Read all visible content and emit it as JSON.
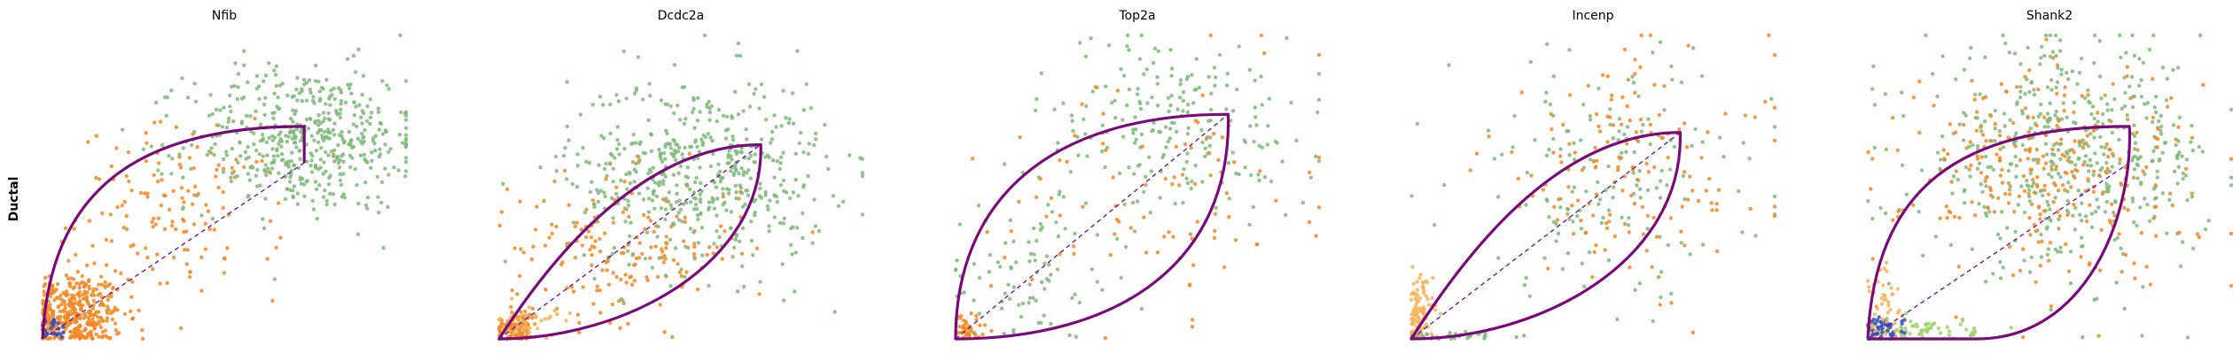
{
  "figure": {
    "row_label": "Ductal",
    "colors": {
      "green": "#7fb97a",
      "orange": "#f08a24",
      "light_orange": "#f4b45a",
      "light_green": "#9fd46a",
      "blue": "#3b4cc0",
      "purple": "#7a0a7a",
      "dashed": "#6a1b9a"
    }
  },
  "chart_data": [
    {
      "type": "scatter",
      "title": "Nfib",
      "shape": "top_curve",
      "clusters": [
        {
          "color": "orange",
          "n": 420,
          "cx": 0.08,
          "cy": 0.08,
          "sx": 0.07,
          "sy": 0.07
        },
        {
          "color": "orange",
          "n": 140,
          "cx": 0.38,
          "cy": 0.42,
          "sx": 0.14,
          "sy": 0.14
        },
        {
          "color": "green",
          "n": 520,
          "cx": 0.72,
          "cy": 0.66,
          "sx": 0.16,
          "sy": 0.12
        },
        {
          "color": "blue",
          "n": 25,
          "cx": 0.03,
          "cy": 0.03,
          "sx": 0.02,
          "sy": 0.02
        }
      ],
      "tip": [
        0.72,
        0.7
      ]
    },
    {
      "type": "scatter",
      "title": "Dcdc2a",
      "shape": "leaf_narrow",
      "clusters": [
        {
          "color": "orange",
          "n": 110,
          "cx": 0.05,
          "cy": 0.04,
          "sx": 0.03,
          "sy": 0.03
        },
        {
          "color": "orange",
          "n": 180,
          "cx": 0.35,
          "cy": 0.3,
          "sx": 0.16,
          "sy": 0.12
        },
        {
          "color": "green",
          "n": 520,
          "cx": 0.55,
          "cy": 0.55,
          "sx": 0.18,
          "sy": 0.16
        },
        {
          "color": "light_orange",
          "n": 40,
          "cx": 0.08,
          "cy": 0.05,
          "sx": 0.04,
          "sy": 0.03
        }
      ],
      "tip": [
        0.72,
        0.64
      ]
    },
    {
      "type": "scatter",
      "title": "Top2a",
      "shape": "leaf_wide",
      "clusters": [
        {
          "color": "green",
          "n": 220,
          "cx": 0.6,
          "cy": 0.7,
          "sx": 0.2,
          "sy": 0.15
        },
        {
          "color": "green",
          "n": 80,
          "cx": 0.2,
          "cy": 0.2,
          "sx": 0.12,
          "sy": 0.12
        },
        {
          "color": "orange",
          "n": 90,
          "cx": 0.55,
          "cy": 0.5,
          "sx": 0.22,
          "sy": 0.2
        },
        {
          "color": "orange",
          "n": 40,
          "cx": 0.03,
          "cy": 0.03,
          "sx": 0.03,
          "sy": 0.03
        }
      ],
      "tip": [
        0.75,
        0.74
      ]
    },
    {
      "type": "scatter",
      "title": "Incenp",
      "shape": "leaf_narrow",
      "clusters": [
        {
          "color": "light_orange",
          "n": 110,
          "cx": 0.02,
          "cy": 0.07,
          "sx": 0.02,
          "sy": 0.07
        },
        {
          "color": "green",
          "n": 160,
          "cx": 0.55,
          "cy": 0.55,
          "sx": 0.22,
          "sy": 0.2
        },
        {
          "color": "orange",
          "n": 150,
          "cx": 0.6,
          "cy": 0.55,
          "sx": 0.2,
          "sy": 0.2
        },
        {
          "color": "green",
          "n": 30,
          "cx": 0.12,
          "cy": 0.01,
          "sx": 0.08,
          "sy": 0.005
        }
      ],
      "tip": [
        0.74,
        0.68
      ]
    },
    {
      "type": "scatter",
      "title": "Shank2",
      "shape": "top_curve",
      "clusters": [
        {
          "color": "green",
          "n": 500,
          "cx": 0.55,
          "cy": 0.6,
          "sx": 0.2,
          "sy": 0.18
        },
        {
          "color": "orange",
          "n": 280,
          "cx": 0.5,
          "cy": 0.55,
          "sx": 0.2,
          "sy": 0.18
        },
        {
          "color": "light_green",
          "n": 90,
          "cx": 0.12,
          "cy": 0.03,
          "sx": 0.09,
          "sy": 0.02
        },
        {
          "color": "blue",
          "n": 50,
          "cx": 0.04,
          "cy": 0.03,
          "sx": 0.03,
          "sy": 0.02
        },
        {
          "color": "light_orange",
          "n": 40,
          "cx": 0.05,
          "cy": 0.12,
          "sx": 0.03,
          "sy": 0.06
        }
      ],
      "tip": [
        0.72,
        0.7
      ]
    }
  ]
}
